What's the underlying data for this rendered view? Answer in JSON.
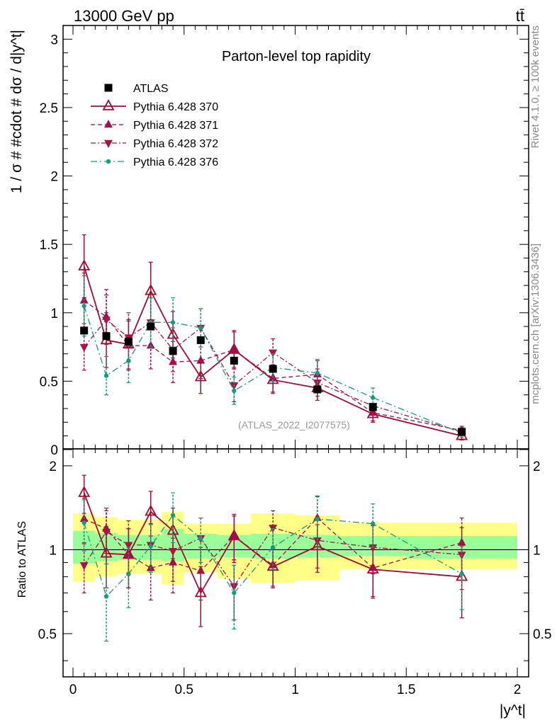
{
  "header": {
    "left": "13000 GeV pp",
    "right": "tt̄"
  },
  "side_labels": {
    "rivet": "Rivet 4.1.0, ≥ 100k events",
    "mcplots": "mcplots.cern.ch [arXiv:1306.3436]"
  },
  "colors": {
    "atlas": "#000000",
    "p370": "#a50b2f",
    "p371": "#a50b4f",
    "p372": "#a51640",
    "p376": "#169a80",
    "band_inner": "#99ff99",
    "band_outer": "#ffff88"
  },
  "chart_data": [
    {
      "type": "scatter",
      "title": "Parton-level top rapidity",
      "watermark": "(ATLAS_2022_I2077575)",
      "xlabel": "|y^t|",
      "ylabel": "1 / σ # #cdot # dσ / d|y^t|",
      "xlim": [
        0,
        2
      ],
      "ylim": [
        0,
        3.1
      ],
      "yticks": [
        {
          "v": 0,
          "label": "0"
        },
        {
          "v": 0.5,
          "label": "0.5"
        },
        {
          "v": 1,
          "label": "1"
        },
        {
          "v": 1.5,
          "label": "1.5"
        },
        {
          "v": 2,
          "label": "2"
        },
        {
          "v": 2.5,
          "label": "2.5"
        },
        {
          "v": 3,
          "label": "3"
        }
      ],
      "x": [
        0.05,
        0.15,
        0.25,
        0.35,
        0.45,
        0.575,
        0.725,
        0.9,
        1.1,
        1.35,
        1.75
      ],
      "bin_edges": [
        0,
        0.1,
        0.2,
        0.3,
        0.4,
        0.5,
        0.65,
        0.8,
        1.0,
        1.2,
        1.5,
        2.0
      ],
      "series": [
        {
          "name": "ATLAS",
          "key": "atlas",
          "marker": "square",
          "line": "none",
          "values": [
            0.87,
            0.83,
            0.79,
            0.9,
            0.72,
            0.8,
            0.65,
            0.59,
            0.44,
            0.31,
            0.13
          ],
          "errors": [
            0.02,
            0.02,
            0.02,
            0.02,
            0.02,
            0.02,
            0.02,
            0.02,
            0.02,
            0.02,
            0.01
          ]
        },
        {
          "name": "Pythia 6.428 370",
          "key": "p370",
          "marker": "triangle-up-open",
          "line": "solid",
          "values": [
            1.34,
            0.8,
            0.77,
            1.16,
            0.84,
            0.53,
            0.73,
            0.51,
            0.45,
            0.26,
            0.1
          ],
          "errors": [
            0.23,
            0.2,
            0.18,
            0.21,
            0.17,
            0.12,
            0.14,
            0.1,
            0.09,
            0.06,
            0.03
          ]
        },
        {
          "name": "Pythia 6.428 371",
          "key": "p371",
          "marker": "triangle-up-filled",
          "line": "dashed",
          "values": [
            1.09,
            0.97,
            0.76,
            0.76,
            0.64,
            0.65,
            0.73,
            0.52,
            0.55,
            0.27,
            0.14
          ],
          "errors": [
            0.2,
            0.2,
            0.18,
            0.17,
            0.15,
            0.13,
            0.13,
            0.1,
            0.1,
            0.06,
            0.03
          ]
        },
        {
          "name": "Pythia 6.428 372",
          "key": "p372",
          "marker": "triangle-down-filled",
          "line": "dashdot",
          "values": [
            0.75,
            0.95,
            0.82,
            0.93,
            0.73,
            0.89,
            0.47,
            0.71,
            0.49,
            0.32,
            0.13
          ],
          "errors": [
            0.17,
            0.18,
            0.18,
            0.18,
            0.16,
            0.14,
            0.12,
            0.1,
            0.1,
            0.06,
            0.03
          ]
        },
        {
          "name": "Pythia 6.428 376",
          "key": "p376",
          "marker": "dot",
          "line": "dashdot-long",
          "values": [
            1.05,
            0.54,
            0.65,
            0.93,
            0.93,
            0.89,
            0.43,
            0.6,
            0.56,
            0.38,
            0.12
          ],
          "errors": [
            0.22,
            0.14,
            0.16,
            0.18,
            0.18,
            0.14,
            0.1,
            0.1,
            0.1,
            0.07,
            0.03
          ]
        }
      ]
    },
    {
      "type": "scatter",
      "title": "",
      "xlabel": "|y^t|",
      "ylabel": "Ratio to ATLAS",
      "xlim": [
        0,
        2
      ],
      "ylim": [
        0.35,
        2.3
      ],
      "yscale": "log",
      "xticks": [
        {
          "v": 0,
          "label": "0"
        },
        {
          "v": 0.5,
          "label": "0.5"
        },
        {
          "v": 1,
          "label": "1"
        },
        {
          "v": 1.5,
          "label": "1.5"
        },
        {
          "v": 2,
          "label": "2"
        }
      ],
      "yticks": [
        {
          "v": 0.5,
          "label": "0.5"
        },
        {
          "v": 1,
          "label": "1"
        },
        {
          "v": 2,
          "label": "2"
        }
      ],
      "reference_line": 1,
      "x": [
        0.05,
        0.15,
        0.25,
        0.35,
        0.45,
        0.575,
        0.725,
        0.9,
        1.1,
        1.35,
        1.75
      ],
      "bin_edges": [
        0,
        0.1,
        0.2,
        0.3,
        0.4,
        0.5,
        0.65,
        0.8,
        1.0,
        1.2,
        1.5,
        2.0
      ],
      "band_inner": [
        [
          0.89,
          1.17
        ],
        [
          0.91,
          1.15
        ],
        [
          0.92,
          1.13
        ],
        [
          0.92,
          1.13
        ],
        [
          0.91,
          1.19
        ],
        [
          0.93,
          1.14
        ],
        [
          0.94,
          1.13
        ],
        [
          0.93,
          1.14
        ],
        [
          0.94,
          1.13
        ],
        [
          0.95,
          1.12
        ],
        [
          0.93,
          1.12
        ]
      ],
      "band_outer": [
        [
          0.77,
          1.35
        ],
        [
          0.8,
          1.31
        ],
        [
          0.82,
          1.28
        ],
        [
          0.82,
          1.28
        ],
        [
          0.75,
          1.37
        ],
        [
          0.83,
          1.24
        ],
        [
          0.79,
          1.24
        ],
        [
          0.76,
          1.35
        ],
        [
          0.78,
          1.33
        ],
        [
          0.85,
          1.25
        ],
        [
          0.85,
          1.25
        ]
      ],
      "series": [
        {
          "name": "Pythia 6.428 370",
          "key": "p370",
          "marker": "triangle-up-open",
          "line": "solid",
          "values": [
            1.6,
            0.97,
            0.96,
            1.37,
            1.17,
            0.7,
            1.12,
            0.87,
            1.03,
            0.85,
            0.8
          ],
          "errors": [
            0.25,
            0.24,
            0.23,
            0.25,
            0.24,
            0.17,
            0.22,
            0.14,
            0.2,
            0.18,
            0.23
          ]
        },
        {
          "name": "Pythia 6.428 371",
          "key": "p371",
          "marker": "triangle-up-filled",
          "line": "dashed",
          "values": [
            1.29,
            1.19,
            0.96,
            0.86,
            0.9,
            0.84,
            1.12,
            0.88,
            1.3,
            0.86,
            1.06
          ],
          "errors": [
            0.24,
            0.22,
            0.23,
            0.2,
            0.2,
            0.18,
            0.2,
            0.14,
            0.25,
            0.18,
            0.24
          ]
        },
        {
          "name": "Pythia 6.428 372",
          "key": "p372",
          "marker": "triangle-down-filled",
          "line": "dashdot",
          "values": [
            0.88,
            1.16,
            1.04,
            1.04,
            0.99,
            1.1,
            0.74,
            1.2,
            1.08,
            1.02,
            0.96
          ],
          "errors": [
            0.18,
            0.22,
            0.23,
            0.2,
            0.22,
            0.2,
            0.18,
            0.18,
            0.22,
            0.2,
            0.24
          ]
        },
        {
          "name": "Pythia 6.428 376",
          "key": "p376",
          "marker": "dot",
          "line": "dashdot-long",
          "values": [
            1.25,
            0.68,
            0.82,
            1.03,
            1.33,
            1.1,
            0.7,
            1.02,
            1.29,
            1.24,
            0.82
          ],
          "errors": [
            0.26,
            0.21,
            0.2,
            0.2,
            0.27,
            0.2,
            0.18,
            0.17,
            0.27,
            0.22,
            0.21
          ]
        }
      ]
    }
  ]
}
